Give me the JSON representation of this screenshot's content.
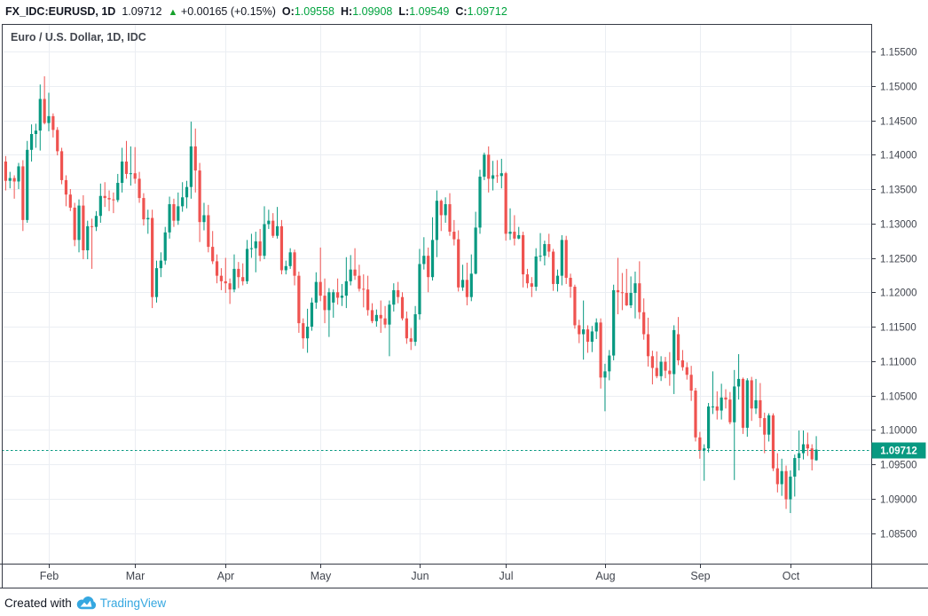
{
  "legend": {
    "symbol": "FX_IDC:EURUSD, 1D",
    "last": "1.09712",
    "arrow": "▲",
    "change": "+0.00165 (+0.15%)",
    "o_label": "O:",
    "o_value": "1.09558",
    "h_label": "H:",
    "h_value": "1.09908",
    "l_label": "L:",
    "l_value": "1.09549",
    "c_label": "C:",
    "c_value": "1.09712"
  },
  "pane": {
    "title": "Euro / U.S. Dollar, 1D, IDC"
  },
  "attribution": {
    "created_with": "Created with",
    "brand": "TradingView"
  },
  "colors": {
    "up": "#089981",
    "down": "#ef5350",
    "legend_green": "#00a33e",
    "arrow_green": "#16a12b",
    "grid": "#ebeef3",
    "axis_line": "#363a45",
    "axis_text": "#42464f",
    "brand_blue": "#35a7e0",
    "price_label_bg": "#089981",
    "price_label_text": "#ffffff"
  },
  "chart_data": {
    "type": "candlestick",
    "symbol": "FX_IDC:EURUSD",
    "timeframe": "1D",
    "exchange": "IDC",
    "title": "Euro / U.S. Dollar, 1D, IDC",
    "last_bar": {
      "open": 1.09558,
      "high": 1.09908,
      "low": 1.09549,
      "close": 1.09712,
      "change": "+0.00165",
      "change_pct": "+0.15%"
    },
    "last_price_line": 1.09712,
    "last_price_label": "1.09712",
    "grid": true,
    "y_axis": {
      "side": "right",
      "min": 1.085,
      "max": 1.155,
      "step": 0.005,
      "tick_labels": [
        "1.15500",
        "1.15000",
        "1.14500",
        "1.14000",
        "1.13500",
        "1.13000",
        "1.12500",
        "1.12000",
        "1.11500",
        "1.11000",
        "1.10500",
        "1.10000",
        "1.09500",
        "1.09000",
        "1.08500"
      ]
    },
    "x_axis": {
      "ticks": [
        {
          "label": "Feb",
          "index": 10
        },
        {
          "label": "Mar",
          "index": 30
        },
        {
          "label": "Apr",
          "index": 51
        },
        {
          "label": "May",
          "index": 73
        },
        {
          "label": "Jun",
          "index": 96
        },
        {
          "label": "Jul",
          "index": 116
        },
        {
          "label": "Aug",
          "index": 139
        },
        {
          "label": "Sep",
          "index": 161
        },
        {
          "label": "Oct",
          "index": 182
        }
      ]
    },
    "candles": [
      [
        1.139,
        1.1398,
        1.1348,
        1.1362
      ],
      [
        1.1362,
        1.1375,
        1.1351,
        1.1366
      ],
      [
        1.1366,
        1.137,
        1.1336,
        1.1361
      ],
      [
        1.1361,
        1.1388,
        1.135,
        1.1383
      ],
      [
        1.1383,
        1.1392,
        1.1289,
        1.1305
      ],
      [
        1.1305,
        1.142,
        1.1301,
        1.1407
      ],
      [
        1.1407,
        1.1444,
        1.139,
        1.143
      ],
      [
        1.143,
        1.1445,
        1.141,
        1.1435
      ],
      [
        1.1435,
        1.1502,
        1.1406,
        1.1481
      ],
      [
        1.1481,
        1.1514,
        1.1444,
        1.1446
      ],
      [
        1.1446,
        1.149,
        1.1434,
        1.1456
      ],
      [
        1.1456,
        1.146,
        1.1425,
        1.1436
      ],
      [
        1.1436,
        1.144,
        1.1399,
        1.1405
      ],
      [
        1.1405,
        1.141,
        1.1357,
        1.1363
      ],
      [
        1.1363,
        1.137,
        1.1325,
        1.1342
      ],
      [
        1.1342,
        1.135,
        1.1318,
        1.1323
      ],
      [
        1.1323,
        1.133,
        1.1267,
        1.1276
      ],
      [
        1.1276,
        1.1335,
        1.1258,
        1.1326
      ],
      [
        1.1326,
        1.1341,
        1.1248,
        1.1261
      ],
      [
        1.1261,
        1.1304,
        1.1248,
        1.1296
      ],
      [
        1.1296,
        1.1307,
        1.1234,
        1.1295
      ],
      [
        1.1295,
        1.1318,
        1.1289,
        1.1311
      ],
      [
        1.1311,
        1.1358,
        1.1301,
        1.134
      ],
      [
        1.134,
        1.136,
        1.1324,
        1.1337
      ],
      [
        1.1337,
        1.1348,
        1.1318,
        1.1335
      ],
      [
        1.1335,
        1.1345,
        1.1315,
        1.1334
      ],
      [
        1.1334,
        1.1372,
        1.1331,
        1.1359
      ],
      [
        1.1359,
        1.141,
        1.1345,
        1.139
      ],
      [
        1.139,
        1.142,
        1.1365,
        1.1372
      ],
      [
        1.1372,
        1.1412,
        1.1355,
        1.1373
      ],
      [
        1.1373,
        1.1411,
        1.1358,
        1.1365
      ],
      [
        1.1365,
        1.1375,
        1.133,
        1.1337
      ],
      [
        1.1337,
        1.1344,
        1.1297,
        1.1306
      ],
      [
        1.1306,
        1.132,
        1.1285,
        1.1308
      ],
      [
        1.1308,
        1.132,
        1.1177,
        1.1193
      ],
      [
        1.1193,
        1.1246,
        1.1185,
        1.1235
      ],
      [
        1.1235,
        1.1258,
        1.1222,
        1.1246
      ],
      [
        1.1246,
        1.1295,
        1.124,
        1.1287
      ],
      [
        1.1287,
        1.1339,
        1.1278,
        1.1328
      ],
      [
        1.1328,
        1.1336,
        1.1295,
        1.1304
      ],
      [
        1.1304,
        1.1345,
        1.1298,
        1.1325
      ],
      [
        1.1325,
        1.136,
        1.1317,
        1.1338
      ],
      [
        1.1338,
        1.1362,
        1.1322,
        1.1353
      ],
      [
        1.1353,
        1.1448,
        1.1336,
        1.1412
      ],
      [
        1.1412,
        1.1438,
        1.1345,
        1.1377
      ],
      [
        1.1377,
        1.1388,
        1.1273,
        1.1302
      ],
      [
        1.1302,
        1.133,
        1.129,
        1.1312
      ],
      [
        1.1312,
        1.1327,
        1.1258,
        1.1266
      ],
      [
        1.1266,
        1.1289,
        1.1241,
        1.1245
      ],
      [
        1.1245,
        1.1255,
        1.1213,
        1.1224
      ],
      [
        1.1224,
        1.1235,
        1.1203,
        1.1216
      ],
      [
        1.1216,
        1.125,
        1.1199,
        1.1213
      ],
      [
        1.1213,
        1.122,
        1.1183,
        1.1204
      ],
      [
        1.1204,
        1.1255,
        1.12,
        1.1234
      ],
      [
        1.1234,
        1.1244,
        1.1206,
        1.1222
      ],
      [
        1.1222,
        1.1242,
        1.121,
        1.1216
      ],
      [
        1.1216,
        1.1276,
        1.1212,
        1.1263
      ],
      [
        1.1263,
        1.1285,
        1.125,
        1.1264
      ],
      [
        1.1264,
        1.1288,
        1.1229,
        1.1274
      ],
      [
        1.1274,
        1.1292,
        1.1245,
        1.1253
      ],
      [
        1.1253,
        1.1325,
        1.1248,
        1.1299
      ],
      [
        1.1299,
        1.132,
        1.1292,
        1.1304
      ],
      [
        1.1304,
        1.1315,
        1.1279,
        1.1282
      ],
      [
        1.1282,
        1.1324,
        1.1278,
        1.1296
      ],
      [
        1.1296,
        1.1305,
        1.1226,
        1.1232
      ],
      [
        1.1232,
        1.1246,
        1.1226,
        1.1238
      ],
      [
        1.1238,
        1.1264,
        1.1234,
        1.1258
      ],
      [
        1.1258,
        1.1262,
        1.121,
        1.1224
      ],
      [
        1.1224,
        1.123,
        1.1141,
        1.1155
      ],
      [
        1.1155,
        1.1162,
        1.1118,
        1.1133
      ],
      [
        1.1133,
        1.1176,
        1.1112,
        1.115
      ],
      [
        1.115,
        1.1192,
        1.1144,
        1.1185
      ],
      [
        1.1185,
        1.1229,
        1.1176,
        1.1215
      ],
      [
        1.1215,
        1.1265,
        1.1187,
        1.1195
      ],
      [
        1.1195,
        1.122,
        1.1155,
        1.1174
      ],
      [
        1.1174,
        1.1206,
        1.1135,
        1.12
      ],
      [
        1.1185,
        1.1204,
        1.1163,
        1.12
      ],
      [
        1.12,
        1.122,
        1.1182,
        1.1192
      ],
      [
        1.1192,
        1.1212,
        1.118,
        1.1195
      ],
      [
        1.1195,
        1.1251,
        1.1177,
        1.1216
      ],
      [
        1.1216,
        1.1254,
        1.121,
        1.1233
      ],
      [
        1.1233,
        1.1264,
        1.1218,
        1.1224
      ],
      [
        1.1224,
        1.124,
        1.1201,
        1.1205
      ],
      [
        1.1205,
        1.1226,
        1.1178,
        1.1204
      ],
      [
        1.1204,
        1.1224,
        1.1166,
        1.1174
      ],
      [
        1.1174,
        1.1184,
        1.1155,
        1.1158
      ],
      [
        1.1158,
        1.1175,
        1.115,
        1.1167
      ],
      [
        1.1167,
        1.1188,
        1.1141,
        1.1162
      ],
      [
        1.1162,
        1.118,
        1.1148,
        1.1153
      ],
      [
        1.1153,
        1.1188,
        1.1107,
        1.1182
      ],
      [
        1.1182,
        1.1213,
        1.1172,
        1.1203
      ],
      [
        1.1203,
        1.1215,
        1.1184,
        1.1193
      ],
      [
        1.1193,
        1.12,
        1.1159,
        1.1162
      ],
      [
        1.1162,
        1.1172,
        1.1125,
        1.1133
      ],
      [
        1.1133,
        1.1148,
        1.1116,
        1.1128
      ],
      [
        1.1128,
        1.118,
        1.1122,
        1.1168
      ],
      [
        1.1168,
        1.1263,
        1.116,
        1.1241
      ],
      [
        1.1241,
        1.128,
        1.1233,
        1.1253
      ],
      [
        1.1253,
        1.1265,
        1.12,
        1.1222
      ],
      [
        1.1222,
        1.1309,
        1.1217,
        1.1276
      ],
      [
        1.1276,
        1.1348,
        1.1251,
        1.1333
      ],
      [
        1.1333,
        1.1335,
        1.1289,
        1.1312
      ],
      [
        1.1312,
        1.1338,
        1.1301,
        1.1328
      ],
      [
        1.1328,
        1.1344,
        1.1282,
        1.1288
      ],
      [
        1.1288,
        1.1305,
        1.1268,
        1.1277
      ],
      [
        1.1277,
        1.129,
        1.1201,
        1.1207
      ],
      [
        1.1207,
        1.124,
        1.1202,
        1.1218
      ],
      [
        1.1218,
        1.1243,
        1.1181,
        1.1193
      ],
      [
        1.1193,
        1.1255,
        1.1187,
        1.1227
      ],
      [
        1.1227,
        1.1317,
        1.1226,
        1.1294
      ],
      [
        1.1294,
        1.1378,
        1.1285,
        1.1368
      ],
      [
        1.1368,
        1.1403,
        1.1363,
        1.14
      ],
      [
        1.14,
        1.1412,
        1.1345,
        1.1365
      ],
      [
        1.1365,
        1.1391,
        1.1348,
        1.137
      ],
      [
        1.137,
        1.1392,
        1.1359,
        1.1369
      ],
      [
        1.1369,
        1.1394,
        1.1351,
        1.1373
      ],
      [
        1.1373,
        1.1375,
        1.1275,
        1.1285
      ],
      [
        1.1285,
        1.1322,
        1.1276,
        1.1288
      ],
      [
        1.1288,
        1.1312,
        1.1268,
        1.1278
      ],
      [
        1.1278,
        1.1295,
        1.1277,
        1.1283
      ],
      [
        1.1283,
        1.1288,
        1.1207,
        1.1226
      ],
      [
        1.1226,
        1.1234,
        1.1206,
        1.1213
      ],
      [
        1.1213,
        1.1222,
        1.1193,
        1.1208
      ],
      [
        1.1208,
        1.1264,
        1.1202,
        1.1252
      ],
      [
        1.1252,
        1.1286,
        1.1245,
        1.1253
      ],
      [
        1.1253,
        1.1275,
        1.1239,
        1.127
      ],
      [
        1.127,
        1.1285,
        1.1251,
        1.1259
      ],
      [
        1.1259,
        1.1263,
        1.1202,
        1.1212
      ],
      [
        1.1212,
        1.1233,
        1.1201,
        1.1224
      ],
      [
        1.1224,
        1.1283,
        1.121,
        1.1276
      ],
      [
        1.1276,
        1.1282,
        1.1212,
        1.1221
      ],
      [
        1.1221,
        1.1227,
        1.1192,
        1.1208
      ],
      [
        1.1208,
        1.1211,
        1.1147,
        1.1152
      ],
      [
        1.1152,
        1.116,
        1.1126,
        1.1139
      ],
      [
        1.1139,
        1.1188,
        1.1102,
        1.1146
      ],
      [
        1.1146,
        1.1152,
        1.1112,
        1.1128
      ],
      [
        1.1128,
        1.1151,
        1.1113,
        1.1143
      ],
      [
        1.1143,
        1.1162,
        1.1132,
        1.1156
      ],
      [
        1.1156,
        1.1162,
        1.106,
        1.1076
      ],
      [
        1.1076,
        1.1096,
        1.1027,
        1.1085
      ],
      [
        1.1085,
        1.1116,
        1.1072,
        1.1108
      ],
      [
        1.1108,
        1.1211,
        1.1101,
        1.1203
      ],
      [
        1.1203,
        1.125,
        1.1168,
        1.12
      ],
      [
        1.12,
        1.1228,
        1.1174,
        1.1199
      ],
      [
        1.1199,
        1.1234,
        1.118,
        1.1181
      ],
      [
        1.1181,
        1.1223,
        1.1177,
        1.1199
      ],
      [
        1.1199,
        1.123,
        1.1162,
        1.1213
      ],
      [
        1.1213,
        1.1245,
        1.1161,
        1.1171
      ],
      [
        1.1171,
        1.1191,
        1.1131,
        1.1139
      ],
      [
        1.1139,
        1.1163,
        1.1092,
        1.1107
      ],
      [
        1.1107,
        1.1115,
        1.1066,
        1.109
      ],
      [
        1.109,
        1.1114,
        1.1075,
        1.1078
      ],
      [
        1.1078,
        1.1107,
        1.1071,
        1.1099
      ],
      [
        1.1099,
        1.1106,
        1.1075,
        1.1086
      ],
      [
        1.1086,
        1.1113,
        1.1064,
        1.1081
      ],
      [
        1.1081,
        1.1152,
        1.1052,
        1.1145
      ],
      [
        1.1139,
        1.1164,
        1.1094,
        1.1101
      ],
      [
        1.1101,
        1.1116,
        1.1086,
        1.1091
      ],
      [
        1.1091,
        1.1098,
        1.1073,
        1.108
      ],
      [
        1.108,
        1.1093,
        1.1042,
        1.1057
      ],
      [
        1.1057,
        1.1061,
        1.0983,
        1.0989
      ],
      [
        1.0989,
        1.0997,
        1.0958,
        1.097
      ],
      [
        1.097,
        1.0979,
        1.0926,
        1.0973
      ],
      [
        1.0973,
        1.1039,
        1.0967,
        1.1034
      ],
      [
        1.1034,
        1.1085,
        1.1023,
        1.1034
      ],
      [
        1.1034,
        1.1056,
        1.1015,
        1.1028
      ],
      [
        1.1028,
        1.1067,
        1.1015,
        1.1047
      ],
      [
        1.1047,
        1.1059,
        1.1031,
        1.1044
      ],
      [
        1.1044,
        1.1055,
        1.1008,
        1.1011
      ],
      [
        1.1011,
        1.1087,
        1.0927,
        1.1063
      ],
      [
        1.1063,
        1.111,
        1.1044,
        1.1074
      ],
      [
        1.1074,
        1.1076,
        1.0994,
        1.1003
      ],
      [
        1.1003,
        1.1075,
        1.099,
        1.1072
      ],
      [
        1.1072,
        1.1077,
        1.1013,
        1.1031
      ],
      [
        1.1031,
        1.1074,
        1.1023,
        1.1043
      ],
      [
        1.1043,
        1.1068,
        1.1004,
        1.1017
      ],
      [
        1.1017,
        1.1025,
        1.0966,
        1.0993
      ],
      [
        1.0993,
        1.1024,
        1.0983,
        1.1021
      ],
      [
        1.1021,
        1.1024,
        1.094,
        1.0944
      ],
      [
        1.0944,
        1.0966,
        1.0909,
        1.0921
      ],
      [
        1.0921,
        1.0958,
        1.0904,
        1.094
      ],
      [
        1.094,
        1.0948,
        1.0885,
        1.0899
      ],
      [
        1.0899,
        1.0941,
        1.0879,
        1.0932
      ],
      [
        1.0932,
        1.0964,
        1.0903,
        1.0959
      ],
      [
        1.0959,
        1.0999,
        1.0941,
        1.0966
      ],
      [
        1.0966,
        1.0999,
        1.0957,
        1.0979
      ],
      [
        1.0979,
        1.0996,
        1.0962,
        1.0973
      ],
      [
        1.0973,
        1.0979,
        1.0941,
        1.0957
      ],
      [
        1.09558,
        1.09908,
        1.09549,
        1.09712
      ]
    ]
  }
}
